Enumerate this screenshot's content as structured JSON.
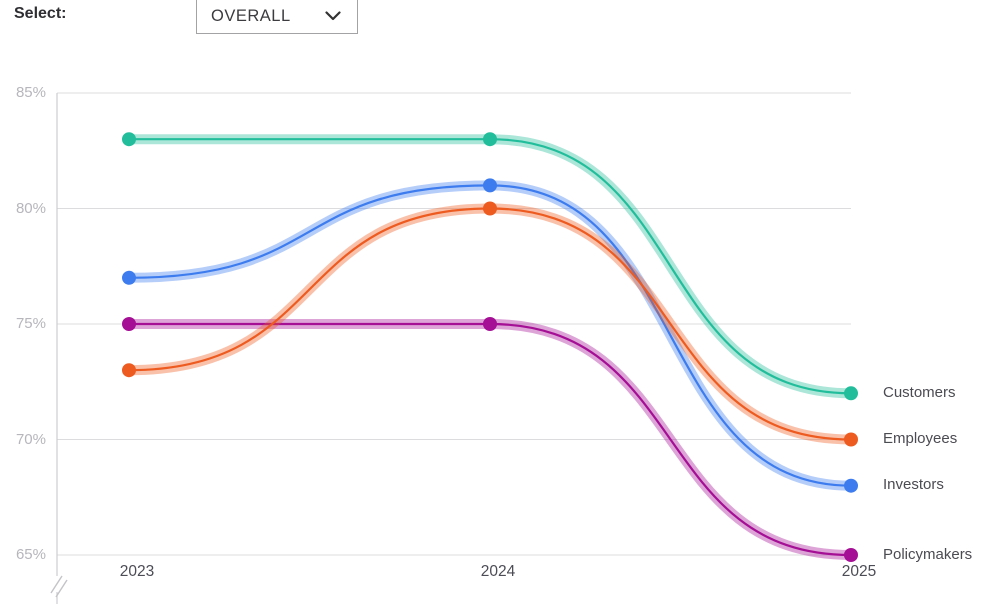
{
  "header": {
    "select_label": "Select:",
    "dropdown_value": "OVERALL"
  },
  "chart_data": {
    "type": "line",
    "title": "",
    "xlabel": "",
    "ylabel": "",
    "x_tick_labels": [
      "2023",
      "2024",
      "2025"
    ],
    "y_tick_labels": [
      "85%",
      "80%",
      "75%",
      "70%",
      "65%"
    ],
    "y_ticks": [
      85,
      80,
      75,
      70,
      65
    ],
    "ylim": [
      65,
      85
    ],
    "grid": true,
    "axis_break_below": "65%",
    "legend_position": "right",
    "categories": [
      2023,
      2024,
      2025
    ],
    "series": [
      {
        "name": "Customers",
        "values": [
          83,
          83,
          72
        ],
        "color": "#22be9b"
      },
      {
        "name": "Employees",
        "values": [
          73,
          80,
          70
        ],
        "color": "#ee5b20"
      },
      {
        "name": "Investors",
        "values": [
          77,
          81,
          68
        ],
        "color": "#3d7cef"
      },
      {
        "name": "Policymakers",
        "values": [
          75,
          75,
          65
        ],
        "color": "#a50f95"
      }
    ]
  }
}
